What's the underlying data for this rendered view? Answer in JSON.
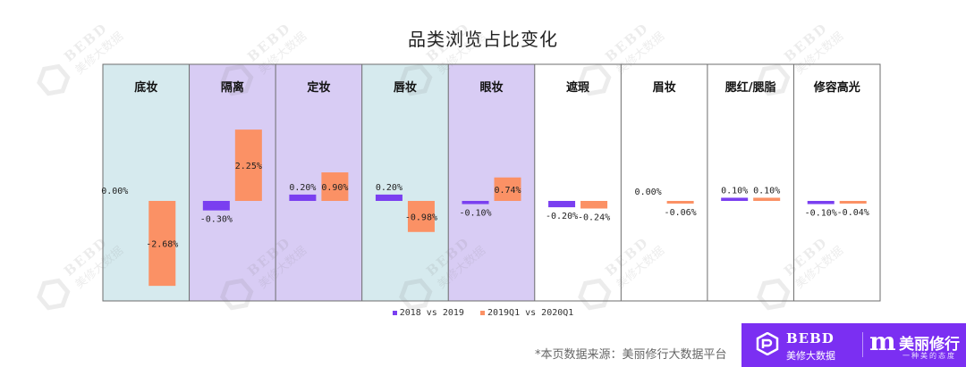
{
  "chart_data": {
    "type": "bar",
    "title": "品类浏览占比变化",
    "categories": [
      "底妆",
      "隔离",
      "定妆",
      "唇妆",
      "眼妆",
      "遮瑕",
      "眉妆",
      "腮红/腮脂",
      "修容高光"
    ],
    "category_backgrounds": [
      "#d6eaee",
      "#d8ccf4",
      "#d8ccf4",
      "#d6eaee",
      "#d8ccf4",
      "#ffffff",
      "#ffffff",
      "#ffffff",
      "#ffffff"
    ],
    "series": [
      {
        "name": "2018 vs 2019",
        "color": "#7a3ff0",
        "values": [
          0.0,
          -0.3,
          0.2,
          0.2,
          -0.1,
          -0.2,
          0.0,
          0.1,
          -0.1
        ],
        "labels": [
          "0.00%",
          "-0.30%",
          "0.20%",
          "0.20%",
          "-0.10%",
          "-0.20%",
          "0.00%",
          "0.10%",
          "-0.10%"
        ]
      },
      {
        "name": "2019Q1 vs 2020Q1",
        "color": "#fb9165",
        "values": [
          -2.68,
          2.25,
          0.9,
          -0.98,
          0.74,
          -0.24,
          -0.06,
          0.1,
          -0.04
        ],
        "labels": [
          "-2.68%",
          "2.25%",
          "0.90%",
          "-0.98%",
          "0.74%",
          "-0.24%",
          "-0.06%",
          "0.10%",
          "-0.04%"
        ]
      }
    ],
    "legend_position": "bottom"
  },
  "footer": {
    "source": "*本页数据来源：美丽修行大数据平台"
  },
  "brand": {
    "en": "BEBD",
    "cn": "美修大数据",
    "m": "m",
    "name": "美丽修行",
    "tag": "一种美的态度",
    "color": "#7b2ff2"
  },
  "watermark": {
    "en": "BEBD",
    "cn": "美修大数据"
  }
}
